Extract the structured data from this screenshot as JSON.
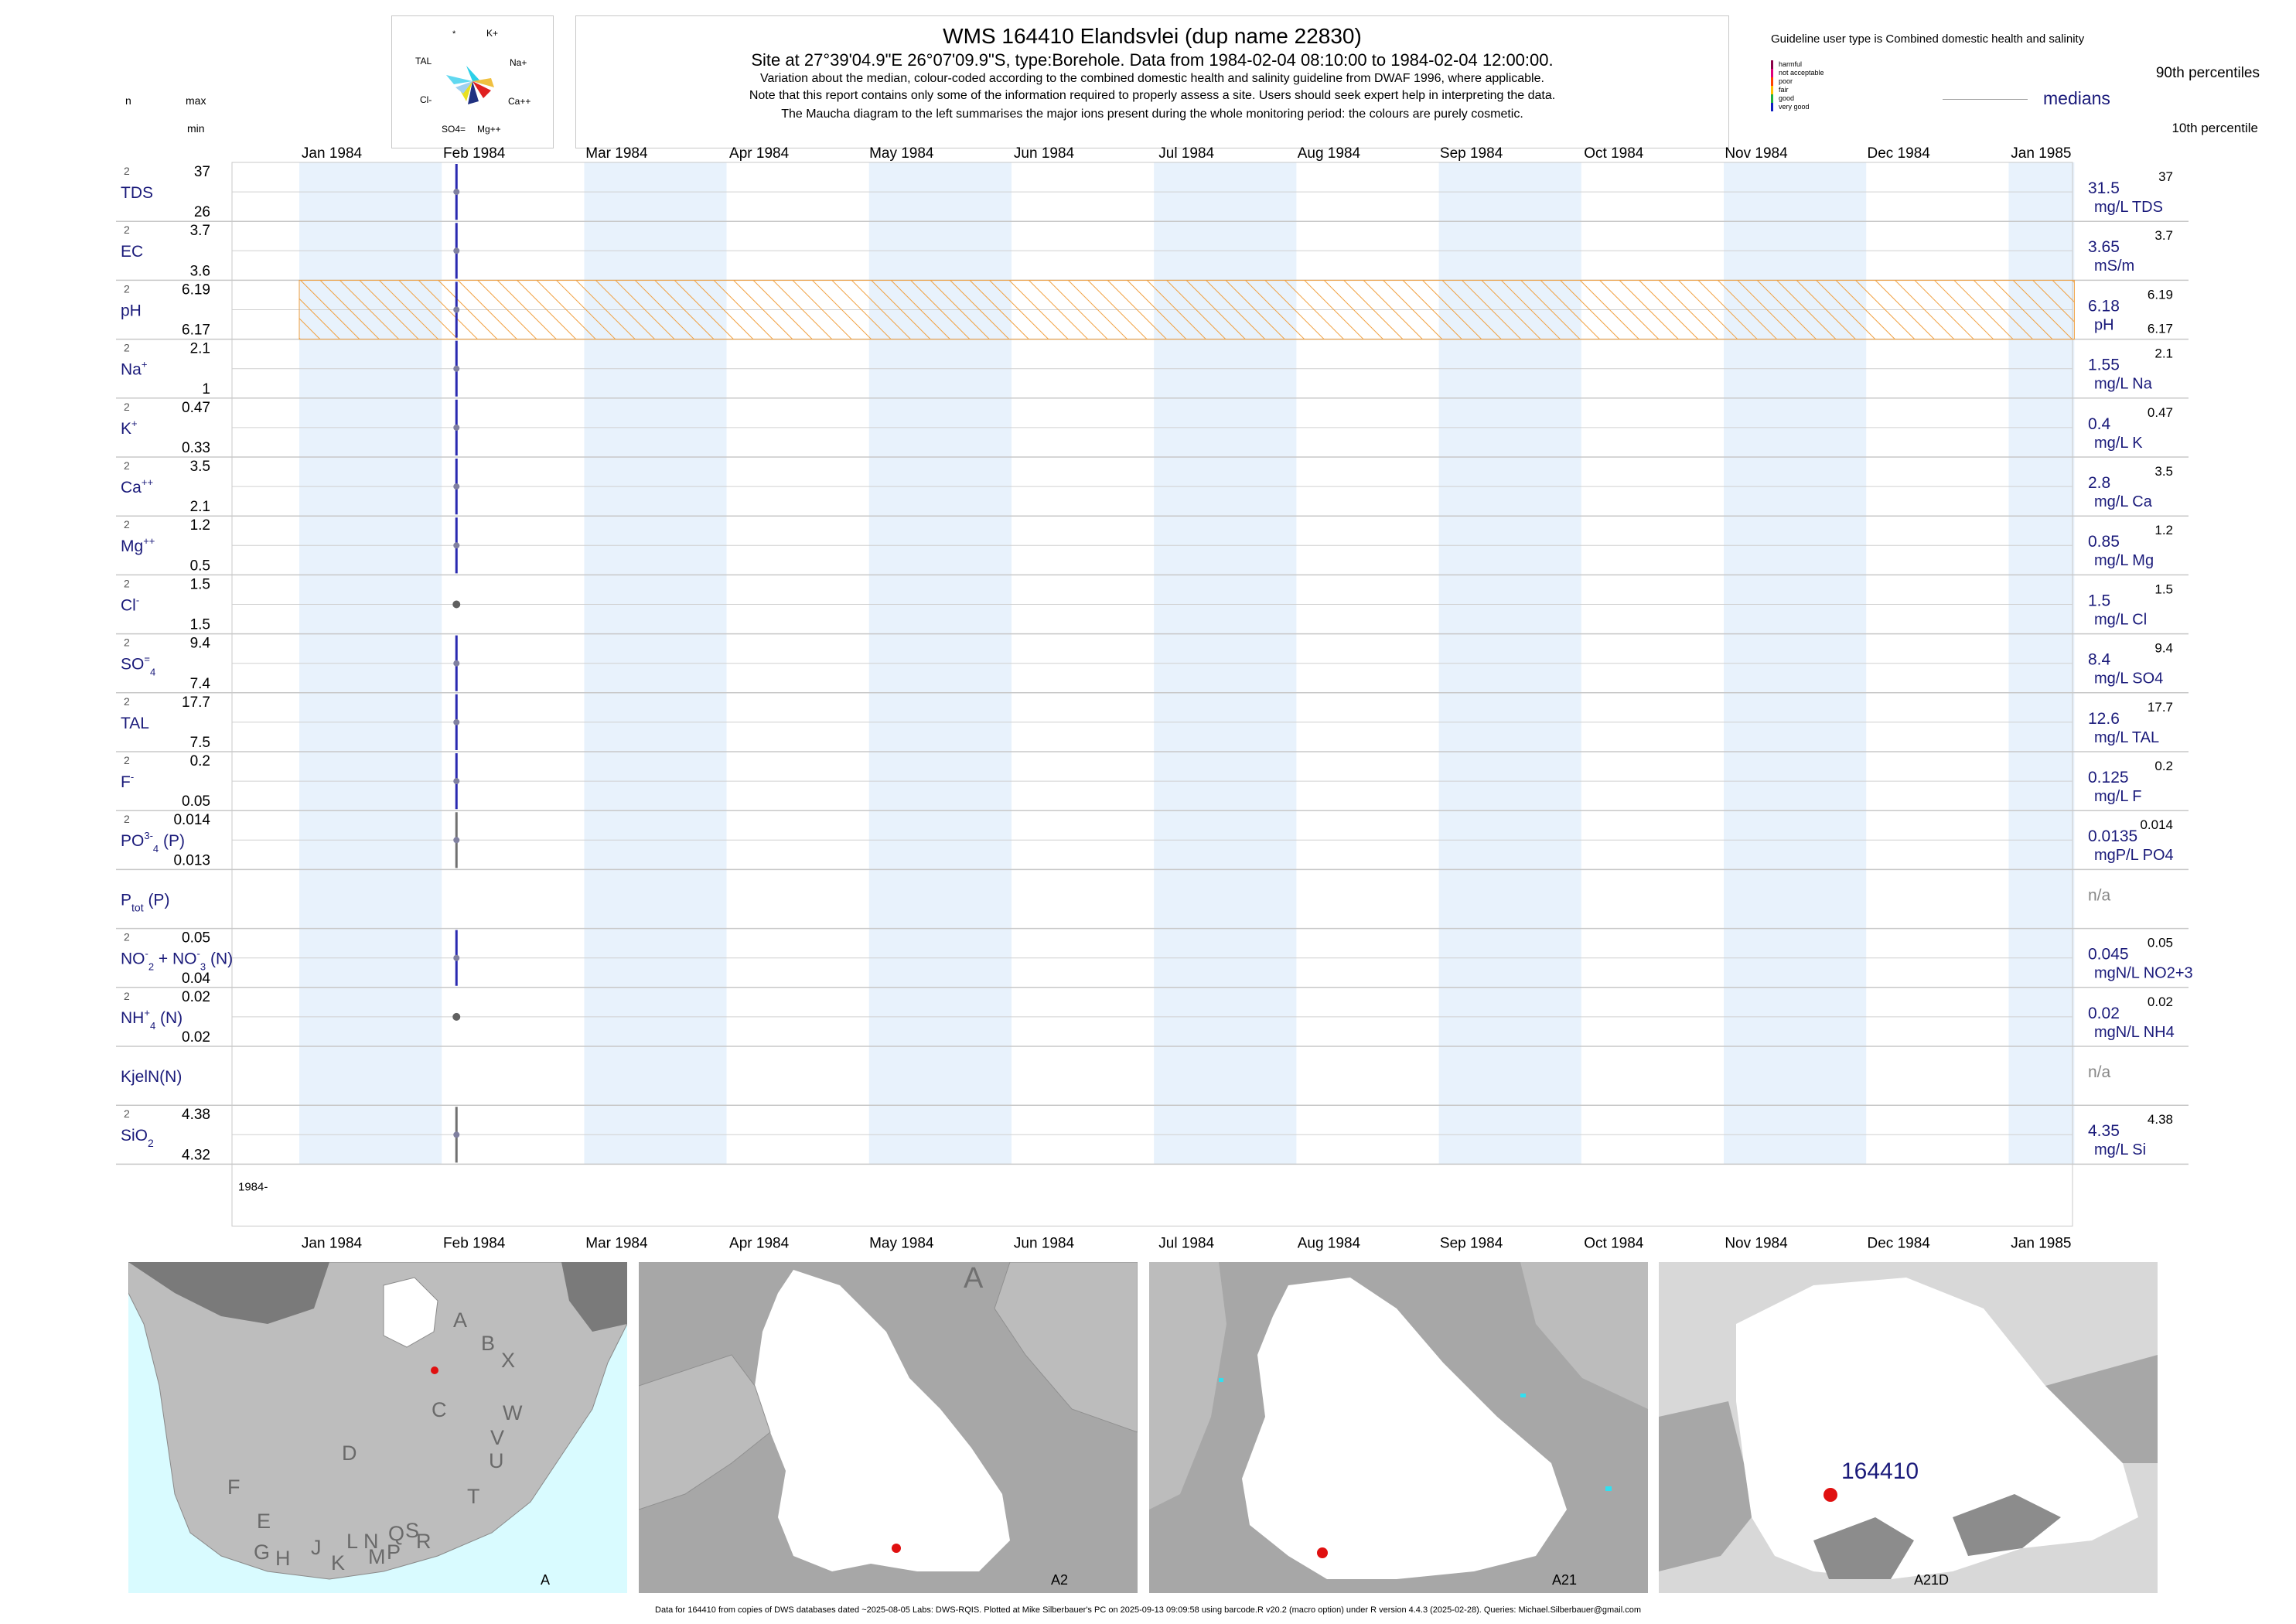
{
  "header": {
    "title": "WMS 164410  Elandsvlei (dup name 22830)",
    "subtitle": "Site at 27°39'04.9\"E 26°07'09.9\"S, type:Borehole.  Data from 1984-02-04 08:10:00 to 1984-02-04 12:00:00.",
    "note1": "Variation about the median,  colour-coded according to the combined domestic health and salinity guideline from DWAF 1996, where applicable.",
    "note2": "Note that this report contains only some of the information required to properly assess a site. Users should seek expert help in interpreting the data.",
    "note3": "The Maucha diagram to the left summarises the major ions present during the whole monitoring period: the colours are purely cosmetic."
  },
  "maucha": {
    "labels": [
      "*",
      "K+",
      "TAL",
      "Na+",
      "Cl-",
      "Ca++",
      "SO4=",
      "Mg++"
    ]
  },
  "left_col_headers": {
    "n": "n",
    "max": "max",
    "min": "min"
  },
  "legend": {
    "guideline_title": "Guideline user type is Combined domestic health and salinity",
    "classes": [
      {
        "label": "harmful",
        "color": "#8B0047"
      },
      {
        "label": "not acceptable",
        "color": "#e0007a"
      },
      {
        "label": "poor",
        "color": "#ff4000"
      },
      {
        "label": "fair",
        "color": "#ffc000"
      },
      {
        "label": "good",
        "color": "#20b040"
      },
      {
        "label": "very good",
        "color": "#1020c0"
      }
    ],
    "p90": "90th percentiles",
    "medians": "medians",
    "p10": "10th percentile"
  },
  "colors": {
    "band": "#e8f2fc",
    "grid": "#c8c8c8",
    "series": "#2a2ab0",
    "grey_series": "#707070",
    "label_blue": "#1a1a7a",
    "ph_hatch": "#f0a040"
  },
  "chart_data": {
    "type": "line",
    "x_axis": {
      "months": [
        "Jan 1984",
        "Feb 1984",
        "Mar 1984",
        "Apr 1984",
        "May 1984",
        "Jun 1984",
        "Jul 1984",
        "Aug 1984",
        "Sep 1984",
        "Oct 1984",
        "Nov 1984",
        "Dec 1984",
        "Jan 1985"
      ],
      "range": [
        "1984-01-01",
        "1985-01-01"
      ],
      "bottom_label": "1984-"
    },
    "sample_date": "1984-02-04",
    "series": [
      {
        "name": "TDS",
        "n": "2",
        "max": "37",
        "min": "26",
        "median": "31.5",
        "unit": "mg/L TDS",
        "values": [
          26,
          37
        ],
        "colour": "blue"
      },
      {
        "name": "EC",
        "n": "2",
        "max": "3.7",
        "min": "3.6",
        "median": "3.65",
        "unit": "mS/m",
        "values": [
          3.6,
          3.7
        ],
        "colour": "blue"
      },
      {
        "name": "pH",
        "n": "2",
        "max": "6.19",
        "min": "6.17",
        "median": "6.18",
        "unit": "pH",
        "values": [
          6.17,
          6.19
        ],
        "colour": "blue",
        "hatched": true
      },
      {
        "name": "Na",
        "sup": "+",
        "n": "2",
        "max": "2.1",
        "min": "1",
        "median": "1.55",
        "unit": "mg/L Na",
        "values": [
          1,
          2.1
        ],
        "colour": "blue"
      },
      {
        "name": "K",
        "sup": "+",
        "n": "2",
        "max": "0.47",
        "min": "0.33",
        "median": "0.4",
        "unit": "mg/L K",
        "values": [
          0.33,
          0.47
        ],
        "colour": "blue"
      },
      {
        "name": "Ca",
        "sup": "++",
        "n": "2",
        "max": "3.5",
        "min": "2.1",
        "median": "2.8",
        "unit": "mg/L Ca",
        "values": [
          2.1,
          3.5
        ],
        "colour": "blue"
      },
      {
        "name": "Mg",
        "sup": "++",
        "n": "2",
        "max": "1.2",
        "min": "0.5",
        "median": "0.85",
        "unit": "mg/L Mg",
        "values": [
          0.5,
          1.2
        ],
        "colour": "blue"
      },
      {
        "name": "Cl",
        "sup": "-",
        "n": "2",
        "max": "1.5",
        "min": "1.5",
        "median": "1.5",
        "unit": "mg/L Cl",
        "values": [
          1.5,
          1.5
        ],
        "colour": "grey"
      },
      {
        "name": "SO",
        "sub": "4",
        "sup": "=",
        "n": "2",
        "max": "9.4",
        "min": "7.4",
        "median": "8.4",
        "unit": "mg/L SO4",
        "values": [
          7.4,
          9.4
        ],
        "colour": "blue"
      },
      {
        "name": "TAL",
        "n": "2",
        "max": "17.7",
        "min": "7.5",
        "median": "12.6",
        "unit": "mg/L TAL",
        "values": [
          7.5,
          17.7
        ],
        "colour": "blue"
      },
      {
        "name": "F",
        "sup": "-",
        "n": "2",
        "max": "0.2",
        "min": "0.05",
        "median": "0.125",
        "unit": "mg/L F",
        "values": [
          0.05,
          0.2
        ],
        "colour": "blue"
      },
      {
        "name": "PO",
        "sub": "4",
        "sup": "3-",
        "suffix": "(P)",
        "n": "2",
        "max": "0.014",
        "min": "0.013",
        "median": "0.0135",
        "unit": "mgP/L PO4",
        "values": [
          0.013,
          0.014
        ],
        "colour": "grey"
      },
      {
        "name": "P",
        "sub": "tot",
        "suffix": "(P)",
        "n": "",
        "max": "",
        "min": "",
        "median": "n/a",
        "unit": "",
        "values": [],
        "colour": "none"
      },
      {
        "name": "NO",
        "sub": "2",
        "sup": "-",
        "mid": "+ NO",
        "sub2": "3",
        "sup2": "-",
        "suffix": "(N)",
        "n": "2",
        "max": "0.05",
        "min": "0.04",
        "median": "0.045",
        "unit": "mgN/L NO2+3",
        "values": [
          0.04,
          0.05
        ],
        "colour": "blue"
      },
      {
        "name": "NH",
        "sub": "4",
        "sup": "+",
        "suffix": "(N)",
        "n": "2",
        "max": "0.02",
        "min": "0.02",
        "median": "0.02",
        "unit": "mgN/L NH4",
        "values": [
          0.02,
          0.02
        ],
        "colour": "grey"
      },
      {
        "name": "KjelN(N)",
        "n": "",
        "max": "",
        "min": "",
        "median": "n/a",
        "unit": "",
        "values": [],
        "colour": "none"
      },
      {
        "name": "SiO",
        "sub": "2",
        "n": "2",
        "max": "4.38",
        "min": "4.32",
        "median": "4.35",
        "unit": "mg/L Si",
        "values": [
          4.32,
          4.38
        ],
        "colour": "grey"
      }
    ]
  },
  "maps": [
    {
      "caption": "A",
      "region_letters": [
        "A",
        "B",
        "X",
        "C",
        "W",
        "D",
        "V",
        "U",
        "F",
        "T",
        "E",
        "L",
        "N",
        "Q",
        "S",
        "G",
        "H",
        "J",
        "K",
        "M",
        "P",
        "R"
      ]
    },
    {
      "caption": "A2",
      "region_letters": [
        "A"
      ]
    },
    {
      "caption": "A21",
      "region_letters": []
    },
    {
      "caption": "A21D",
      "site_label": "164410"
    }
  ],
  "footer": "Data for 164410 from copies of DWS databases dated ~2025-08-05 Labs: DWS-RQIS. Plotted at Mike Silberbauer's PC on 2025-09-13 09:09:58 using barcode.R v20.2 (macro option) under R version 4.4.3 (2025-02-28). Queries: Michael.Silberbauer@gmail.com"
}
